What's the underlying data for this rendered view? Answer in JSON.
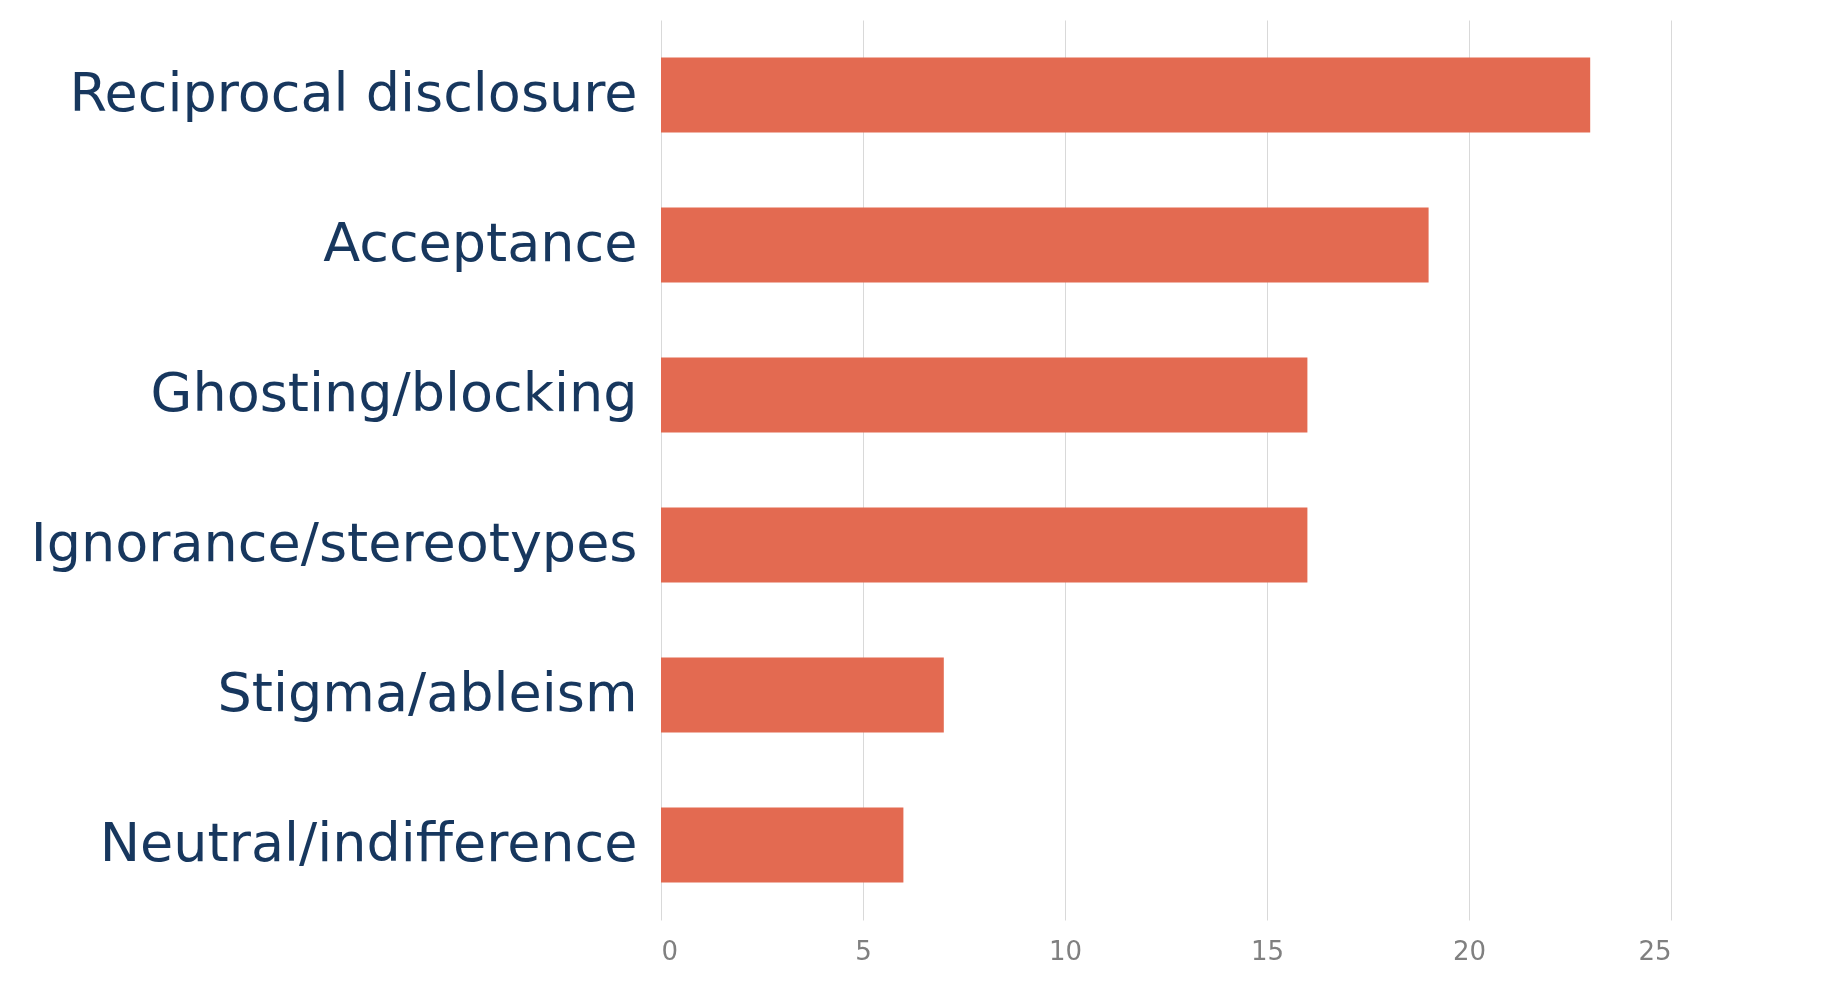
{
  "chart_data": {
    "type": "bar",
    "orientation": "horizontal",
    "categories": [
      "Reciprocal disclosure",
      "Acceptance",
      "Ghosting/blocking",
      "Ignorance/stereotypes",
      "Stigma/ableism",
      "Neutral/indifference"
    ],
    "values": [
      23,
      19,
      16,
      16,
      7,
      6
    ],
    "color": "#e36a51",
    "xlim": [
      0,
      25
    ],
    "xticks": [
      0,
      5,
      10,
      15,
      20,
      25
    ],
    "grid": "x"
  }
}
